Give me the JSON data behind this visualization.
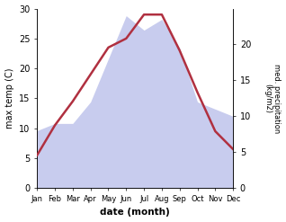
{
  "months": [
    "Jan",
    "Feb",
    "Mar",
    "Apr",
    "May",
    "Jun",
    "Jul",
    "Aug",
    "Sep",
    "Oct",
    "Nov",
    "Dec"
  ],
  "max_temp": [
    5.5,
    10.5,
    14.5,
    19.0,
    23.5,
    25.0,
    29.0,
    29.0,
    23.0,
    16.0,
    9.5,
    6.5
  ],
  "precipitation": [
    8.0,
    9.0,
    9.0,
    12.0,
    18.0,
    24.0,
    22.0,
    23.5,
    19.5,
    12.0,
    11.0,
    10.0
  ],
  "temp_color": "#b03040",
  "precip_fill_color": "#c8ccee",
  "ylabel_left": "max temp (C)",
  "ylabel_right": "med. precipitation\n(kg/m2)",
  "xlabel": "date (month)",
  "ylim_left": [
    0,
    30
  ],
  "ylim_right": [
    0,
    25
  ],
  "yticks_left": [
    0,
    5,
    10,
    15,
    20,
    25,
    30
  ],
  "yticks_right": [
    0,
    5,
    10,
    15,
    20
  ],
  "right_tick_labels": [
    "0",
    "5",
    "10",
    "15",
    "20"
  ],
  "background_color": "#ffffff"
}
